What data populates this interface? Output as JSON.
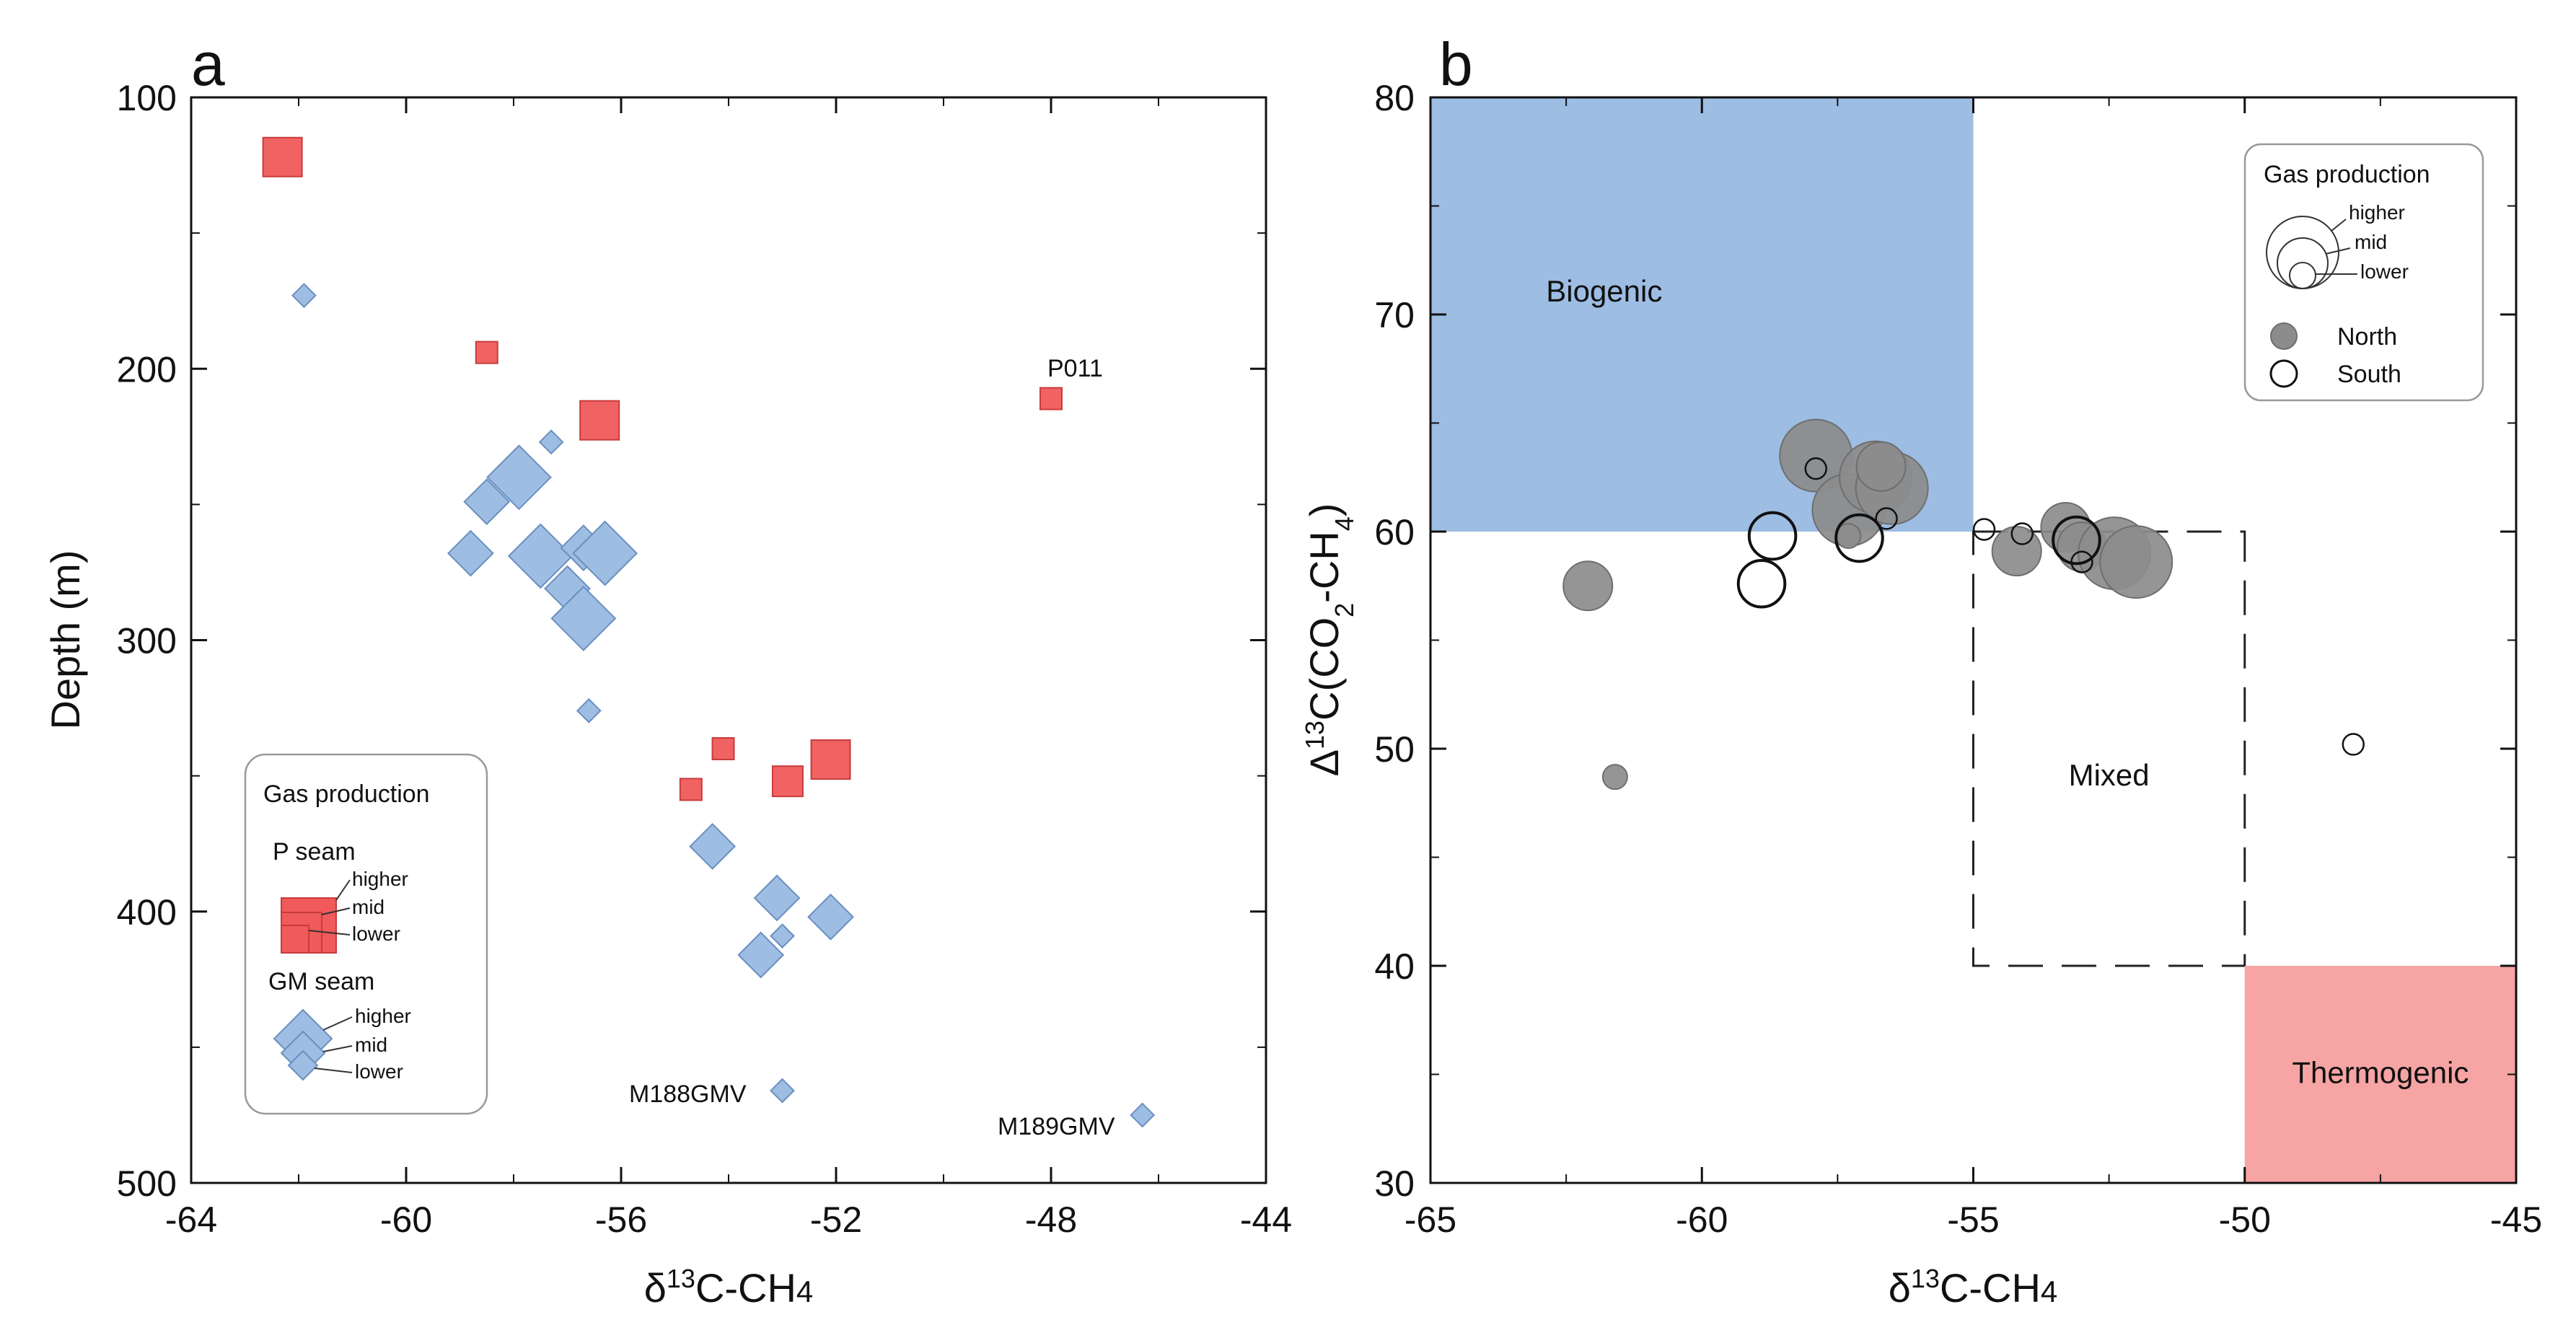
{
  "chart_data": [
    {
      "type": "scatter",
      "panel_label": "a",
      "xlabel": "δ13C-CH4",
      "ylabel": "Depth (m)",
      "xlim": [
        -64,
        -44
      ],
      "ylim": [
        500,
        100
      ],
      "y_inverted": true,
      "xticks": [
        -64,
        -60,
        -56,
        -52,
        -48,
        -44
      ],
      "yticks": [
        100,
        200,
        300,
        400,
        500
      ],
      "series": [
        {
          "name": "P seam",
          "marker": "square",
          "color": "#f05a5a",
          "points": [
            {
              "x": -62.3,
              "y": 122,
              "production": "higher"
            },
            {
              "x": -58.5,
              "y": 194,
              "production": "lower"
            },
            {
              "x": -56.4,
              "y": 219,
              "production": "higher"
            },
            {
              "x": -48.0,
              "y": 211,
              "production": "lower",
              "label": "P011"
            },
            {
              "x": -54.1,
              "y": 340,
              "production": "lower"
            },
            {
              "x": -54.7,
              "y": 355,
              "production": "lower"
            },
            {
              "x": -52.9,
              "y": 352,
              "production": "mid"
            },
            {
              "x": -52.1,
              "y": 344,
              "production": "higher"
            }
          ]
        },
        {
          "name": "GM seam",
          "marker": "diamond",
          "color": "#9dbde3",
          "points": [
            {
              "x": -61.9,
              "y": 173,
              "production": "lower"
            },
            {
              "x": -57.3,
              "y": 227,
              "production": "lower"
            },
            {
              "x": -57.9,
              "y": 240,
              "production": "higher"
            },
            {
              "x": -58.5,
              "y": 249,
              "production": "mid"
            },
            {
              "x": -58.8,
              "y": 268,
              "production": "mid"
            },
            {
              "x": -57.5,
              "y": 269,
              "production": "higher"
            },
            {
              "x": -56.7,
              "y": 266,
              "production": "mid"
            },
            {
              "x": -56.3,
              "y": 268,
              "production": "higher"
            },
            {
              "x": -57.0,
              "y": 281,
              "production": "mid"
            },
            {
              "x": -56.7,
              "y": 292,
              "production": "higher"
            },
            {
              "x": -56.6,
              "y": 326,
              "production": "lower"
            },
            {
              "x": -54.3,
              "y": 376,
              "production": "mid"
            },
            {
              "x": -53.1,
              "y": 395,
              "production": "mid"
            },
            {
              "x": -52.1,
              "y": 402,
              "production": "mid"
            },
            {
              "x": -53.0,
              "y": 409,
              "production": "lower"
            },
            {
              "x": -53.4,
              "y": 416,
              "production": "mid"
            },
            {
              "x": -53.0,
              "y": 466,
              "production": "lower",
              "label": "M188GMV"
            },
            {
              "x": -46.3,
              "y": 475,
              "production": "lower",
              "label": "M189GMV"
            }
          ]
        }
      ],
      "legend": {
        "position": "bottom-left",
        "title": "Gas production",
        "p_seam_label": "P seam",
        "gm_seam_label": "GM seam",
        "size_labels": {
          "higher": "higher",
          "mid": "mid",
          "lower": "lower"
        }
      }
    },
    {
      "type": "scatter",
      "panel_label": "b",
      "xlabel": "δ13C-CH4",
      "ylabel": "Δ13C(CO2-CH4)",
      "xlim": [
        -65,
        -45
      ],
      "ylim": [
        30,
        80
      ],
      "xticks": [
        -65,
        -60,
        -55,
        -50,
        -45
      ],
      "yticks": [
        30,
        40,
        50,
        60,
        70,
        80
      ],
      "regions": [
        {
          "name": "Biogenic",
          "x": [
            -65,
            -55
          ],
          "y": [
            60,
            80
          ],
          "color": "#9dbde3",
          "style": "filled"
        },
        {
          "name": "Mixed",
          "x": [
            -55,
            -50
          ],
          "y": [
            40,
            60
          ],
          "style": "dashed"
        },
        {
          "name": "Thermogenic",
          "x": [
            -50,
            -45
          ],
          "y": [
            30,
            40
          ],
          "color": "#f6a4a4",
          "style": "filled"
        }
      ],
      "series": [
        {
          "name": "North",
          "marker": "filled-circle",
          "color": "#8c8c8c",
          "points": [
            {
              "x": -62.1,
              "y": 57.5,
              "production": "mid"
            },
            {
              "x": -61.6,
              "y": 48.7,
              "production": "lower"
            },
            {
              "x": -57.9,
              "y": 63.5,
              "production": "higher"
            },
            {
              "x": -57.3,
              "y": 61.0,
              "production": "higher"
            },
            {
              "x": -56.8,
              "y": 62.5,
              "production": "higher"
            },
            {
              "x": -56.5,
              "y": 62.0,
              "production": "higher"
            },
            {
              "x": -56.7,
              "y": 63.0,
              "production": "mid"
            },
            {
              "x": -57.3,
              "y": 59.8,
              "production": "lower"
            },
            {
              "x": -53.3,
              "y": 60.2,
              "production": "mid"
            },
            {
              "x": -54.2,
              "y": 59.1,
              "production": "mid"
            },
            {
              "x": -53.0,
              "y": 59.3,
              "production": "mid"
            },
            {
              "x": -52.4,
              "y": 59.0,
              "production": "higher"
            },
            {
              "x": -52.0,
              "y": 58.6,
              "production": "higher"
            }
          ]
        },
        {
          "name": "South",
          "marker": "open-circle",
          "color": "#111111",
          "points": [
            {
              "x": -57.9,
              "y": 62.9,
              "production": "lower"
            },
            {
              "x": -58.7,
              "y": 59.8,
              "production": "mid"
            },
            {
              "x": -58.9,
              "y": 57.6,
              "production": "mid"
            },
            {
              "x": -57.1,
              "y": 59.7,
              "production": "mid"
            },
            {
              "x": -56.6,
              "y": 60.6,
              "production": "lower"
            },
            {
              "x": -54.8,
              "y": 60.1,
              "production": "lower"
            },
            {
              "x": -54.1,
              "y": 59.9,
              "production": "lower"
            },
            {
              "x": -53.1,
              "y": 59.6,
              "production": "mid"
            },
            {
              "x": -53.0,
              "y": 58.6,
              "production": "lower"
            },
            {
              "x": -48.0,
              "y": 50.2,
              "production": "lower"
            }
          ]
        }
      ],
      "legend": {
        "position": "top-right",
        "title": "Gas production",
        "size_labels": {
          "higher": "higher",
          "mid": "mid",
          "lower": "lower"
        },
        "north_label": "North",
        "south_label": "South"
      }
    }
  ]
}
